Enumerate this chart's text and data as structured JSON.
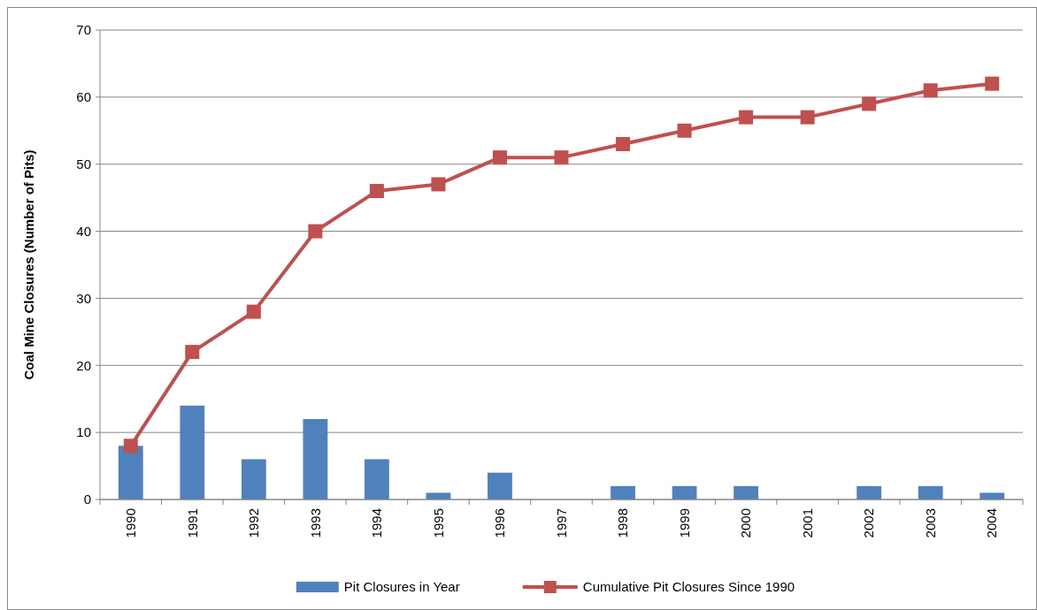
{
  "chart_data": {
    "type": "bar",
    "ylabel": "Coal Mine Closures (Number of Pits)",
    "categories": [
      "1990",
      "1991",
      "1992",
      "1993",
      "1994",
      "1995",
      "1996",
      "1997",
      "1998",
      "1999",
      "2000",
      "2001",
      "2002",
      "2003",
      "2004"
    ],
    "series": [
      {
        "name": "Pit Closures in Year",
        "color": "#4f81bd",
        "values": [
          8,
          14,
          6,
          12,
          6,
          1,
          4,
          0,
          2,
          2,
          2,
          0,
          2,
          2,
          1
        ]
      },
      {
        "name": "Cumulative Pit Closures Since 1990",
        "type": "line",
        "color": "#c0504d",
        "marker": "square",
        "values": [
          8,
          22,
          28,
          40,
          46,
          47,
          51,
          51,
          53,
          55,
          57,
          57,
          59,
          61,
          62
        ]
      }
    ],
    "ylim": [
      0,
      70
    ],
    "yticks": [
      0,
      10,
      20,
      30,
      40,
      50,
      60,
      70
    ],
    "grid": "y",
    "legend": "bottom"
  }
}
